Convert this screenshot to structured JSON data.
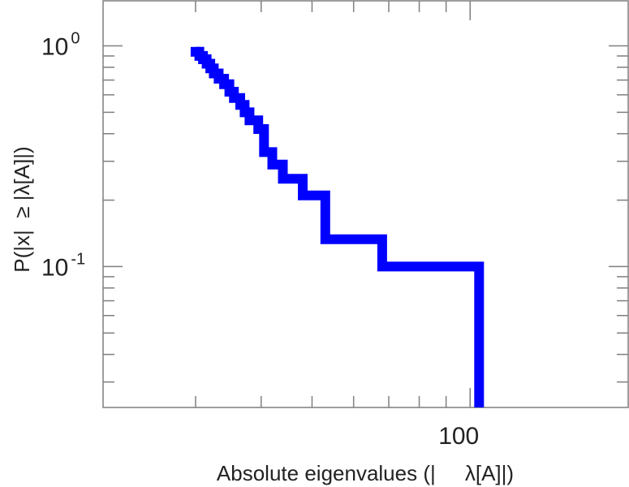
{
  "chart_data": {
    "type": "line",
    "step": true,
    "xscale": "log",
    "yscale": "log",
    "xlabel": "Absolute eigenvalues (|     λ[A]|)",
    "ylabel": "P(|x|  ≥ |λ[A]|)",
    "xlim": [
      20,
      200
    ],
    "ylim": [
      0.023,
      1.6
    ],
    "x_ticks": [
      {
        "value": 100,
        "label": "100"
      }
    ],
    "y_ticks": [
      {
        "value": 1,
        "base": "10",
        "exponent": "0"
      },
      {
        "value": 0.1,
        "base": "10",
        "exponent": "-1"
      }
    ],
    "grid": false,
    "series": [
      {
        "color": "#0000ff",
        "x": [
          30,
          30.5,
          31.0,
          31.5,
          32.0,
          32.5,
          33.2,
          34.0,
          34.8,
          35.5,
          36.5,
          37.2,
          38.0,
          39.5,
          40.5,
          42.0,
          44.0,
          48.0,
          53.0,
          68.0,
          104.0,
          104.0
        ],
        "y": [
          0.94,
          0.9,
          0.87,
          0.83,
          0.79,
          0.75,
          0.71,
          0.67,
          0.62,
          0.58,
          0.54,
          0.5,
          0.46,
          0.42,
          0.33,
          0.29,
          0.25,
          0.21,
          0.133,
          0.1,
          0.067,
          0.033
        ]
      }
    ]
  }
}
